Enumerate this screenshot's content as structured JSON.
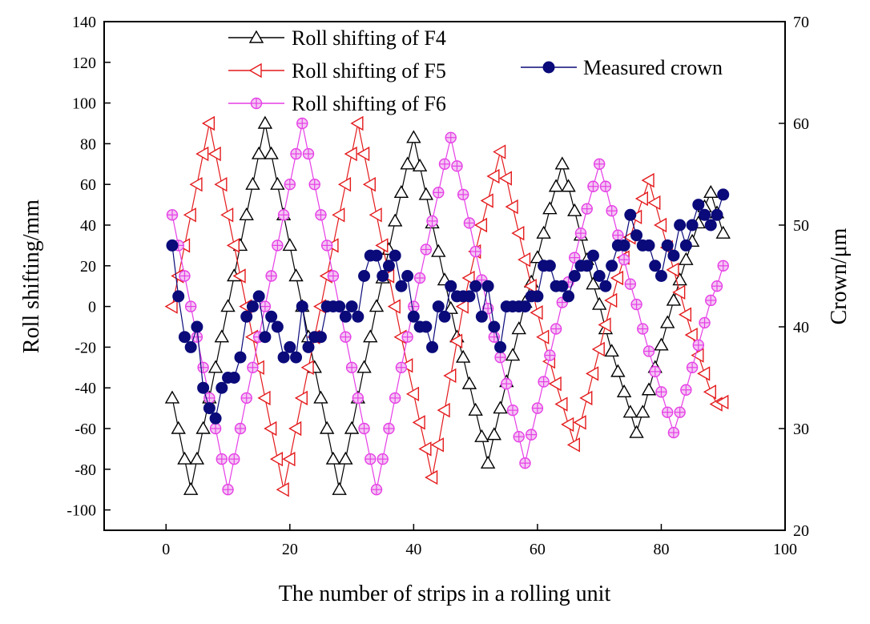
{
  "chart_data": {
    "type": "line",
    "xlabel": "The number of strips in a rolling unit",
    "ylabel_left": "Roll shifting/mm",
    "ylabel_right": "Crown/μm",
    "xlim": [
      -10,
      100
    ],
    "ylim_left": [
      -110,
      140
    ],
    "ylim_right": [
      20,
      70
    ],
    "x_ticks": [
      0,
      20,
      40,
      60,
      80,
      100
    ],
    "y_ticks_left": [
      -100,
      -80,
      -60,
      -40,
      -20,
      0,
      20,
      40,
      60,
      80,
      100,
      120,
      140
    ],
    "y_ticks_right": [
      20,
      30,
      40,
      50,
      60,
      70
    ],
    "grid": false,
    "series": [
      {
        "name": "Roll shifting of F4",
        "axis": "left",
        "color": "#000000",
        "marker": "triangle-up",
        "x": [
          1,
          2,
          3,
          4,
          5,
          6,
          7,
          8,
          9,
          10,
          11,
          12,
          13,
          14,
          15,
          16,
          17,
          18,
          19,
          20,
          21,
          22,
          23,
          24,
          25,
          26,
          27,
          28,
          29,
          30,
          31,
          32,
          33,
          34,
          35,
          36,
          37,
          38,
          39,
          40,
          41,
          42,
          43,
          44,
          45,
          46,
          47,
          48,
          49,
          50,
          51,
          52,
          53,
          54,
          55,
          56,
          57,
          58,
          59,
          60,
          61,
          62,
          63,
          64,
          65,
          66,
          67,
          68,
          69,
          70,
          71,
          72,
          73,
          74,
          75,
          76,
          77,
          78,
          79,
          80,
          81,
          82,
          83,
          84,
          85,
          86,
          87,
          88,
          89,
          90
        ],
        "y": [
          -45,
          -60,
          -75,
          -90,
          -75,
          -60,
          -45,
          -30,
          -15,
          0,
          15,
          30,
          45,
          60,
          75,
          90,
          75,
          60,
          45,
          30,
          15,
          0,
          -15,
          -30,
          -45,
          -60,
          -75,
          -90,
          -75,
          -60,
          -45,
          -30,
          -15,
          0,
          14,
          28,
          42,
          56,
          70,
          83,
          69,
          55,
          41,
          27,
          13,
          -1,
          -15,
          -25,
          -38,
          -51,
          -64,
          -77,
          -63,
          -50,
          -37,
          -24,
          -11,
          2,
          12,
          24,
          36,
          48,
          59,
          70,
          59,
          47,
          35,
          23,
          11,
          1,
          -11,
          -22,
          -32,
          -42,
          -52,
          -62,
          -52,
          -41,
          -30,
          -19,
          -8,
          3,
          13,
          23,
          32,
          41,
          49,
          56,
          46,
          36
        ]
      },
      {
        "name": "Roll shifting of F5",
        "axis": "left",
        "color": "#e41a1c",
        "marker": "triangle-left",
        "x": [
          1,
          2,
          3,
          4,
          5,
          6,
          7,
          8,
          9,
          10,
          11,
          12,
          13,
          14,
          15,
          16,
          17,
          18,
          19,
          20,
          21,
          22,
          23,
          24,
          25,
          26,
          27,
          28,
          29,
          30,
          31,
          32,
          33,
          34,
          35,
          36,
          37,
          38,
          39,
          40,
          41,
          42,
          43,
          44,
          45,
          46,
          47,
          48,
          49,
          50,
          51,
          52,
          53,
          54,
          55,
          56,
          57,
          58,
          59,
          60,
          61,
          62,
          63,
          64,
          65,
          66,
          67,
          68,
          69,
          70,
          71,
          72,
          73,
          74,
          75,
          76,
          77,
          78,
          79,
          80,
          81,
          82,
          83,
          84,
          85,
          86,
          87,
          88,
          89,
          90
        ],
        "y": [
          0,
          15,
          30,
          45,
          60,
          75,
          90,
          75,
          60,
          45,
          30,
          15,
          0,
          -15,
          -30,
          -45,
          -60,
          -75,
          -90,
          -75,
          -60,
          -45,
          -30,
          -15,
          0,
          15,
          30,
          45,
          60,
          75,
          90,
          75,
          60,
          45,
          30,
          15,
          0,
          -15,
          -29,
          -43,
          -57,
          -70,
          -84,
          -68,
          -51,
          -34,
          -17,
          0,
          14,
          27,
          40,
          52,
          64,
          76,
          63,
          49,
          36,
          23,
          10,
          -3,
          -15,
          -27,
          -38,
          -48,
          -58,
          -68,
          -57,
          -45,
          -33,
          -21,
          -9,
          3,
          14,
          24,
          34,
          44,
          53,
          62,
          51,
          40,
          29,
          18,
          7,
          -4,
          -14,
          -24,
          -33,
          -42,
          -48,
          -47
        ]
      },
      {
        "name": "Roll shifting of F6",
        "axis": "left",
        "color": "#e63fe6",
        "marker": "circle-plus",
        "x": [
          1,
          2,
          3,
          4,
          5,
          6,
          7,
          8,
          9,
          10,
          11,
          12,
          13,
          14,
          15,
          16,
          17,
          18,
          19,
          20,
          21,
          22,
          23,
          24,
          25,
          26,
          27,
          28,
          29,
          30,
          31,
          32,
          33,
          34,
          35,
          36,
          37,
          38,
          39,
          40,
          41,
          42,
          43,
          44,
          45,
          46,
          47,
          48,
          49,
          50,
          51,
          52,
          53,
          54,
          55,
          56,
          57,
          58,
          59,
          60,
          61,
          62,
          63,
          64,
          65,
          66,
          67,
          68,
          69,
          70,
          71,
          72,
          73,
          74,
          75,
          76,
          77,
          78,
          79,
          80,
          81,
          82,
          83,
          84,
          85,
          86,
          87,
          88,
          89,
          90
        ],
        "y": [
          45,
          30,
          15,
          0,
          -15,
          -30,
          -45,
          -60,
          -75,
          -90,
          -75,
          -60,
          -45,
          -30,
          -15,
          0,
          15,
          30,
          45,
          60,
          75,
          90,
          75,
          60,
          45,
          30,
          15,
          0,
          -15,
          -30,
          -45,
          -60,
          -75,
          -90,
          -75,
          -60,
          -45,
          -30,
          -15,
          0,
          14,
          28,
          42,
          56,
          70,
          83,
          69,
          55,
          41,
          27,
          13,
          -1,
          -15,
          -25,
          -38,
          -51,
          -64,
          -77,
          -63,
          -50,
          -37,
          -24,
          -11,
          2,
          12,
          24,
          36,
          48,
          59,
          70,
          59,
          47,
          35,
          23,
          11,
          1,
          -11,
          -22,
          -32,
          -42,
          -52,
          -62,
          -52,
          -41,
          -30,
          -19,
          -8,
          3,
          10,
          20
        ]
      },
      {
        "name": "Measured crown",
        "axis": "right",
        "color": "#0a0a7a",
        "marker": "filled-circle",
        "x": [
          1,
          2,
          3,
          4,
          5,
          6,
          7,
          8,
          9,
          10,
          11,
          12,
          13,
          14,
          15,
          16,
          17,
          18,
          19,
          20,
          21,
          22,
          23,
          24,
          25,
          26,
          27,
          28,
          29,
          30,
          31,
          32,
          33,
          34,
          35,
          36,
          37,
          38,
          39,
          40,
          41,
          42,
          43,
          44,
          45,
          46,
          47,
          48,
          49,
          50,
          51,
          52,
          53,
          54,
          55,
          56,
          57,
          58,
          59,
          60,
          61,
          62,
          63,
          64,
          65,
          66,
          67,
          68,
          69,
          70,
          71,
          72,
          73,
          74,
          75,
          76,
          77,
          78,
          79,
          80,
          81,
          82,
          83,
          84,
          85,
          86,
          87,
          88,
          89,
          90
        ],
        "y": [
          48,
          43,
          39,
          38,
          40,
          34,
          32,
          31,
          34,
          35,
          35,
          37,
          41,
          42,
          43,
          39,
          41,
          40,
          37,
          38,
          37,
          42,
          38,
          39,
          39,
          42,
          42,
          42,
          41,
          42,
          41,
          45,
          47,
          47,
          45,
          46,
          47,
          44,
          45,
          41,
          40,
          40,
          38,
          42,
          41,
          44,
          43,
          43,
          43,
          44,
          41,
          44,
          40,
          38,
          42,
          42,
          42,
          42,
          43,
          43,
          46,
          46,
          44,
          44,
          43,
          45,
          46,
          46,
          47,
          45,
          44,
          46,
          48,
          48,
          51,
          49,
          48,
          48,
          46,
          45,
          48,
          47,
          50,
          48,
          50,
          52,
          51,
          50,
          51,
          53
        ]
      }
    ],
    "legend": [
      {
        "label": "Roll shifting of F4",
        "placement": "top-left"
      },
      {
        "label": "Roll shifting of F5",
        "placement": "top-left"
      },
      {
        "label": "Roll shifting of F6",
        "placement": "top-left"
      },
      {
        "label": "Measured crown",
        "placement": "top-right"
      }
    ]
  }
}
